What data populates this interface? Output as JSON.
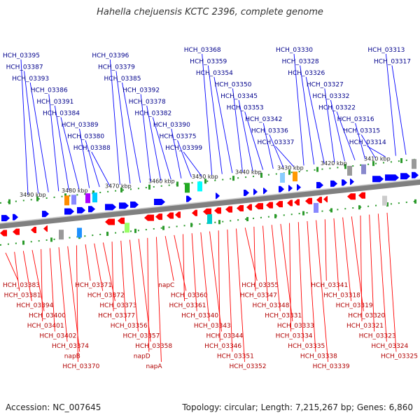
{
  "title": "Hahella chejuensis KCTC 2396, complete genome",
  "footer": {
    "accession": "Accession: NC_007645",
    "summary": "Topology: circular; Length: 7,215,267 bp; Genes: 6,860"
  },
  "colors": {
    "forward_gene": "#0000ff",
    "reverse_gene": "#ff0000",
    "forward_label": "#00008b",
    "reverse_label": "#b00000",
    "backbone": "#808080",
    "tick": "#2a9a2a"
  },
  "scale_labels": [
    "3490 kbp",
    "3480 kbp",
    "3470 kbp",
    "3460 kbp",
    "3450 kbp",
    "3440 kbp",
    "3430 kbp",
    "3420 kbp",
    "3410 kbp"
  ],
  "top_labels": [
    "HCH_03395",
    "HCH_03387",
    "HCH_03393",
    "HCH_03386",
    "HCH_03391",
    "HCH_03384",
    "HCH_03389",
    "HCH_03380",
    "HCH_03388",
    "HCH_03396",
    "HCH_03379",
    "HCH_03385",
    "HCH_03392",
    "HCH_03378",
    "HCH_03382",
    "HCH_03390",
    "HCH_03375",
    "HCH_03399",
    "HCH_03368",
    "HCH_03359",
    "HCH_03354",
    "HCH_03350",
    "HCH_03345",
    "HCH_03353",
    "HCH_03342",
    "HCH_03336",
    "HCH_03337",
    "HCH_03330",
    "HCH_03328",
    "HCH_03326",
    "HCH_03327",
    "HCH_03332",
    "HCH_03322",
    "HCH_03316",
    "HCH_03315",
    "HCH_03314",
    "HCH_03313",
    "HCH_03317"
  ],
  "bottom_labels": [
    "HCH_03383",
    "HCH_03381",
    "HCH_03394",
    "HCH_03400",
    "HCH_03401",
    "HCH_03402",
    "HCH_03374",
    "napB",
    "HCH_03370",
    "HCH_03371",
    "HCH_03372",
    "HCH_03373",
    "HCH_03377",
    "HCH_03356",
    "HCH_03357",
    "HCH_03358",
    "napD",
    "napA",
    "napC",
    "HCH_03360",
    "HCH_03361",
    "HCH_03340",
    "HCH_03343",
    "HCH_03344",
    "HCH_03346",
    "HCH_03351",
    "HCH_03352",
    "HCH_03355",
    "HCH_03347",
    "HCH_03348",
    "HCH_03331",
    "HCH_03333",
    "HCH_03334",
    "HCH_03335",
    "HCH_03338",
    "HCH_03339",
    "HCH_03341",
    "HCH_03318",
    "HCH_03319",
    "HCH_03320",
    "HCH_03321",
    "HCH_03323",
    "HCH_03324",
    "HCH_03325"
  ]
}
